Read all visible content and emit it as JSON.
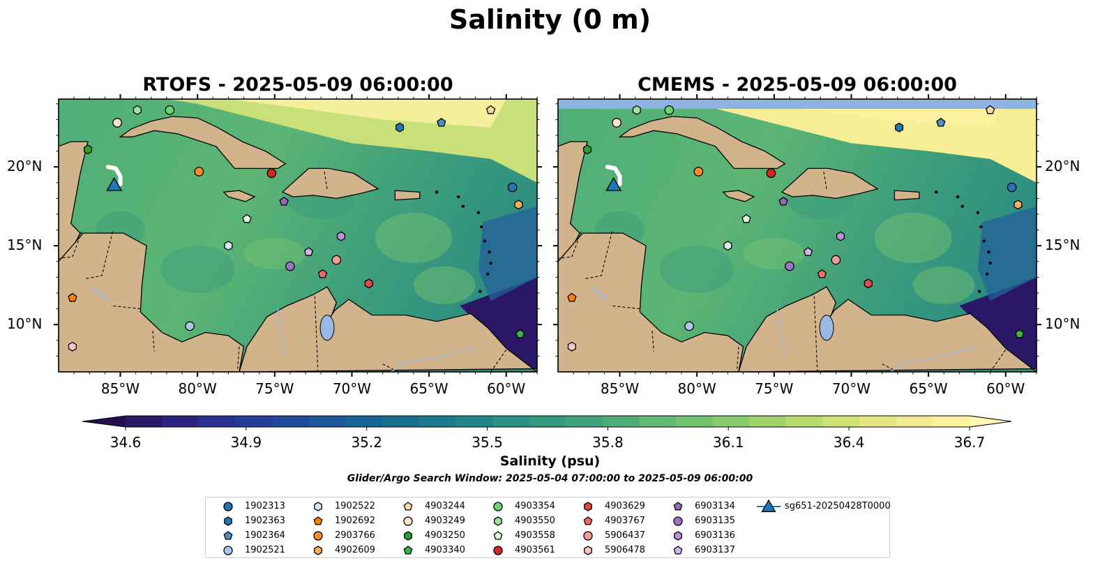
{
  "figure": {
    "title": "Salinity (0 m)",
    "panels": [
      {
        "title": "RTOFS - 2025-05-09 06:00:00",
        "show_lat_side": "left",
        "cmems_band": false
      },
      {
        "title": "CMEMS - 2025-05-09 06:00:00",
        "show_lat_side": "right",
        "cmems_band": true
      }
    ],
    "lon_ticks": [
      "85°W",
      "80°W",
      "75°W",
      "70°W",
      "65°W",
      "60°W"
    ],
    "lat_ticks": [
      "20°N",
      "15°N",
      "10°N"
    ],
    "colorbar": {
      "labels": [
        "34.6",
        "34.9",
        "35.2",
        "35.5",
        "35.8",
        "36.1",
        "36.4",
        "36.7"
      ],
      "title": "Salinity (psu)",
      "colors": [
        "#2a1867",
        "#2c2383",
        "#2a3192",
        "#243d98",
        "#1f4b99",
        "#1b5898",
        "#176394",
        "#18708f",
        "#1c7a8d",
        "#22858a",
        "#2a9184",
        "#34997f",
        "#41a37b",
        "#4fae77",
        "#60b873",
        "#73c26f",
        "#88ca6c",
        "#a0d26c",
        "#b8db6f",
        "#d1e176",
        "#e4e783",
        "#f1ec91",
        "#faf29f"
      ]
    },
    "search_window": "Glider/Argo Search Window: 2025-05-04 07:00:00 to 2025-05-09 06:00:00"
  },
  "chart_data": {
    "type": "scatter",
    "title": "Salinity (0 m)",
    "xlabel": "",
    "ylabel": "",
    "xlim": [
      -89,
      -58
    ],
    "ylim": [
      7,
      24.3
    ],
    "x_ticks": [
      -85,
      -80,
      -75,
      -70,
      -65,
      -60
    ],
    "y_ticks": [
      20,
      15,
      10
    ],
    "colorbar": {
      "label": "Salinity (psu)",
      "range": [
        34.6,
        36.7
      ],
      "extend": "both"
    },
    "legend_placement": "bottom-center",
    "series": [
      {
        "name": "1902313",
        "marker": "circle",
        "color": "#1f77b4",
        "lon": -59.6,
        "lat": 18.7
      },
      {
        "name": "1902363",
        "marker": "hexagon",
        "color": "#1f77b4",
        "lon": -66.9,
        "lat": 22.5
      },
      {
        "name": "1902364",
        "marker": "pentagon",
        "color": "#4a90c8",
        "lon": -64.2,
        "lat": 22.8
      },
      {
        "name": "1902521",
        "marker": "circle",
        "color": "#aec7e8",
        "lon": -80.5,
        "lat": 9.9
      },
      {
        "name": "1902522",
        "marker": "hexagon",
        "color": "#d8eaf8",
        "lon": -78.0,
        "lat": 15.0
      },
      {
        "name": "1902692",
        "marker": "pentagon",
        "color": "#ff7f0e",
        "lon": -88.1,
        "lat": 11.7
      },
      {
        "name": "2903766",
        "marker": "circle",
        "color": "#ff8c2a",
        "lon": -79.9,
        "lat": 19.7
      },
      {
        "name": "4902609",
        "marker": "hexagon",
        "color": "#ffae5e",
        "lon": -59.2,
        "lat": 17.6
      },
      {
        "name": "4903244",
        "marker": "pentagon",
        "color": "#fcd5a5",
        "lon": -61.0,
        "lat": 23.6
      },
      {
        "name": "4903249",
        "marker": "circle",
        "color": "#fde5c8",
        "lon": -85.2,
        "lat": 22.8
      },
      {
        "name": "4903250",
        "marker": "hexagon",
        "color": "#2ca02c",
        "lon": -87.1,
        "lat": 21.1
      },
      {
        "name": "4903340",
        "marker": "pentagon",
        "color": "#3cb34a",
        "lon": -59.1,
        "lat": 9.4
      },
      {
        "name": "4903354",
        "marker": "circle",
        "color": "#6fd36f",
        "lon": -81.8,
        "lat": 23.6
      },
      {
        "name": "4903550",
        "marker": "hexagon",
        "color": "#a1e3a1",
        "lon": -83.9,
        "lat": 23.6
      },
      {
        "name": "4903558",
        "marker": "pentagon",
        "color": "#d9f7d3",
        "lon": -76.8,
        "lat": 16.7
      },
      {
        "name": "4903561",
        "marker": "circle",
        "color": "#d62728",
        "lon": -75.2,
        "lat": 19.6
      },
      {
        "name": "4903629",
        "marker": "hexagon",
        "color": "#e3484a",
        "lon": -68.9,
        "lat": 12.6
      },
      {
        "name": "4903767",
        "marker": "pentagon",
        "color": "#ef6d6d",
        "lon": -71.9,
        "lat": 13.2
      },
      {
        "name": "5906437",
        "marker": "circle",
        "color": "#f59b9b",
        "lon": -71.0,
        "lat": 14.1
      },
      {
        "name": "5906478",
        "marker": "hexagon",
        "color": "#fbc4c4",
        "lon": -88.1,
        "lat": 8.6
      },
      {
        "name": "6903134",
        "marker": "pentagon",
        "color": "#9467bd",
        "lon": -74.4,
        "lat": 17.8
      },
      {
        "name": "6903135",
        "marker": "circle",
        "color": "#9c72c6",
        "lon": -74.0,
        "lat": 13.7
      },
      {
        "name": "6903136",
        "marker": "hexagon",
        "color": "#b794db",
        "lon": -70.7,
        "lat": 15.6
      },
      {
        "name": "6903137",
        "marker": "pentagon",
        "color": "#d2b6ec",
        "lon": -72.8,
        "lat": 14.6
      },
      {
        "name": "sg651-20250428T0000",
        "marker": "triangle",
        "color": "#1f77b4",
        "lon": -85.4,
        "lat": 18.9
      }
    ]
  }
}
